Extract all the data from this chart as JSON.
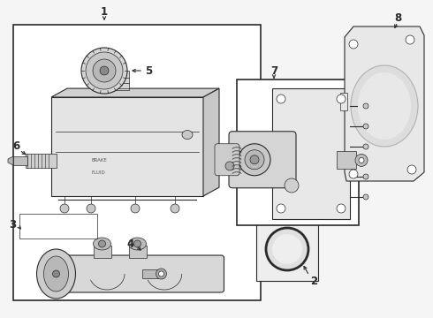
{
  "bg_color": "#f5f5f5",
  "line_color": "#2a2a2a",
  "gray1": "#c8c8c8",
  "gray2": "#e0e0e0",
  "gray3": "#b0b0b0",
  "white": "#ffffff",
  "label_fontsize": 8.5,
  "fig_w": 4.9,
  "fig_h": 3.6,
  "dpi": 100
}
